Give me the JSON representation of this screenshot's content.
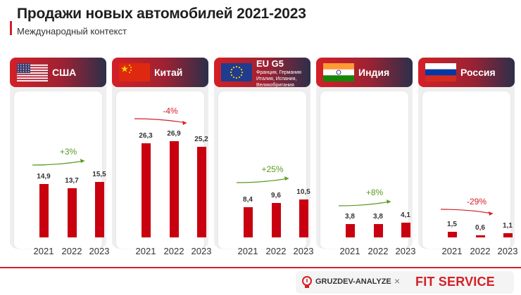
{
  "header": {
    "title": "Продажи новых автомобилей 2021-2023",
    "subtitle": "Международный контекст"
  },
  "panels": [
    {
      "country": "США",
      "sub_lines": [],
      "flag_icon": "usa-flag-icon"
    },
    {
      "country": "Китай",
      "sub_lines": [],
      "flag_icon": "china-flag-icon"
    },
    {
      "country": "EU G5",
      "sub_lines": [
        "Франция, Германия",
        "Италия, Испания,",
        "Великобритания"
      ],
      "flag_icon": "eu-flag-icon"
    },
    {
      "country": "Индия",
      "sub_lines": [],
      "flag_icon": "india-flag-icon"
    },
    {
      "country": "Россия",
      "sub_lines": [],
      "flag_icon": "russia-flag-icon"
    }
  ],
  "chart_data": [
    {
      "type": "bar",
      "title": "США",
      "categories": [
        "2021",
        "2022",
        "2023"
      ],
      "values": [
        14.9,
        13.7,
        15.5
      ],
      "value_labels": [
        "14,9",
        "13,7",
        "15,5"
      ],
      "change": "+3%",
      "change_trend": "up"
    },
    {
      "type": "bar",
      "title": "Китай",
      "categories": [
        "2021",
        "2022",
        "2023"
      ],
      "values": [
        26.3,
        26.9,
        25.2
      ],
      "value_labels": [
        "26,3",
        "26,9",
        "25,2"
      ],
      "change": "-4%",
      "change_trend": "down"
    },
    {
      "type": "bar",
      "title": "EU G5",
      "categories": [
        "2021",
        "2022",
        "2023"
      ],
      "values": [
        8.4,
        9.6,
        10.5
      ],
      "value_labels": [
        "8,4",
        "9,6",
        "10,5"
      ],
      "change": "+25%",
      "change_trend": "up"
    },
    {
      "type": "bar",
      "title": "Индия",
      "categories": [
        "2021",
        "2022",
        "2023"
      ],
      "values": [
        3.8,
        3.8,
        4.1
      ],
      "value_labels": [
        "3,8",
        "3,8",
        "4,1"
      ],
      "change": "+8%",
      "change_trend": "up"
    },
    {
      "type": "bar",
      "title": "Россия",
      "categories": [
        "2021",
        "2022",
        "2023"
      ],
      "values": [
        1.5,
        0.6,
        1.1
      ],
      "value_labels": [
        "1,5",
        "0,6",
        "1,1"
      ],
      "change": "-29%",
      "change_trend": "down"
    }
  ],
  "colors": {
    "bar": "#c8000f",
    "accent": "#d42027",
    "change_up": "#5a9a1e",
    "change_down": "#d42027"
  },
  "footer": {
    "brand_left": "GRUZDEV-ANALYZE",
    "separator": "×",
    "brand_right": "FIT SERVICE"
  }
}
